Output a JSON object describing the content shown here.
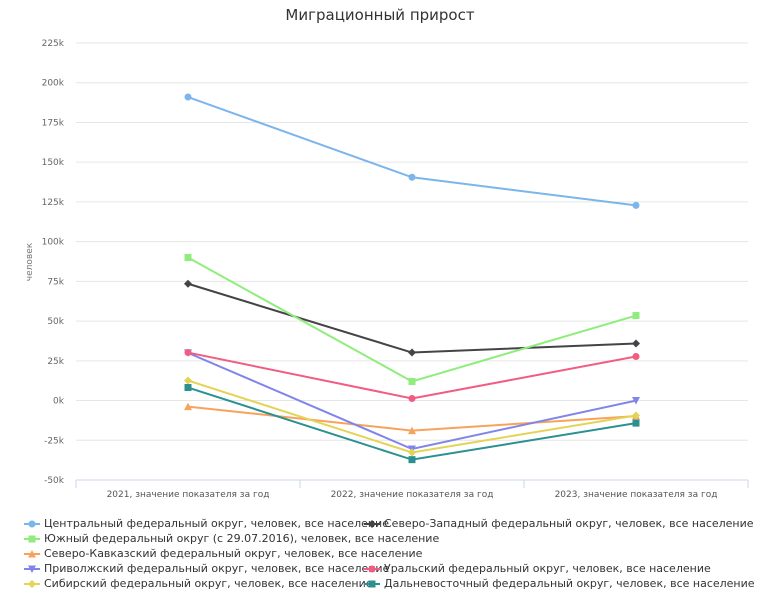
{
  "chart_data": {
    "type": "line",
    "title": "Миграционный прирост",
    "xlabel": "",
    "ylabel": "человек",
    "categories": [
      "2021, значение показателя за год",
      "2022, значение показателя за год",
      "2023, значение показателя за год"
    ],
    "ylim": [
      -50000,
      225000
    ],
    "yticks": [
      225000,
      200000,
      175000,
      150000,
      125000,
      100000,
      75000,
      50000,
      25000,
      0,
      -25000,
      -50000
    ],
    "ytick_labels": [
      "225k",
      "200k",
      "175k",
      "150k",
      "125k",
      "100k",
      "75k",
      "50k",
      "25k",
      "0k",
      "-25k",
      "-50k"
    ],
    "grid": true,
    "legend_position": "bottom",
    "series": [
      {
        "name": "Центральный федеральный округ, человек, все население",
        "color": "#7cb5ec",
        "marker": "circle",
        "values": [
          191000,
          140500,
          122800
        ]
      },
      {
        "name": "Северо-Западный федеральный округ, человек, все население",
        "color": "#434348",
        "marker": "diamond",
        "values": [
          73500,
          30200,
          35900
        ]
      },
      {
        "name": "Южный федеральный округ (с 29.07.2016), человек, все население",
        "color": "#90ed7d",
        "marker": "square",
        "values": [
          90000,
          12000,
          53500
        ]
      },
      {
        "name": "Северо-Кавказский федеральный округ, человек, все население",
        "color": "#f7a35c",
        "marker": "triangle",
        "values": [
          -3800,
          -18900,
          -9800
        ]
      },
      {
        "name": "Приволжский федеральный округ, человек, все население",
        "color": "#8085e9",
        "marker": "triangle-down",
        "values": [
          30000,
          -30500,
          0
        ]
      },
      {
        "name": "Уральский федеральный округ, человек, все население",
        "color": "#f15c80",
        "marker": "circle",
        "values": [
          30200,
          1300,
          27700
        ]
      },
      {
        "name": "Сибирский федеральный округ, человек, все население",
        "color": "#e4d354",
        "marker": "diamond",
        "values": [
          12600,
          -32700,
          -9400
        ]
      },
      {
        "name": "Дальневосточный федеральный округ, человек, все население",
        "color": "#2b908f",
        "marker": "square",
        "values": [
          8200,
          -37200,
          -14200
        ]
      }
    ]
  },
  "legend_layout": [
    [
      0,
      1
    ],
    [
      2
    ],
    [
      3
    ],
    [
      4,
      5
    ],
    [
      6,
      7
    ]
  ]
}
